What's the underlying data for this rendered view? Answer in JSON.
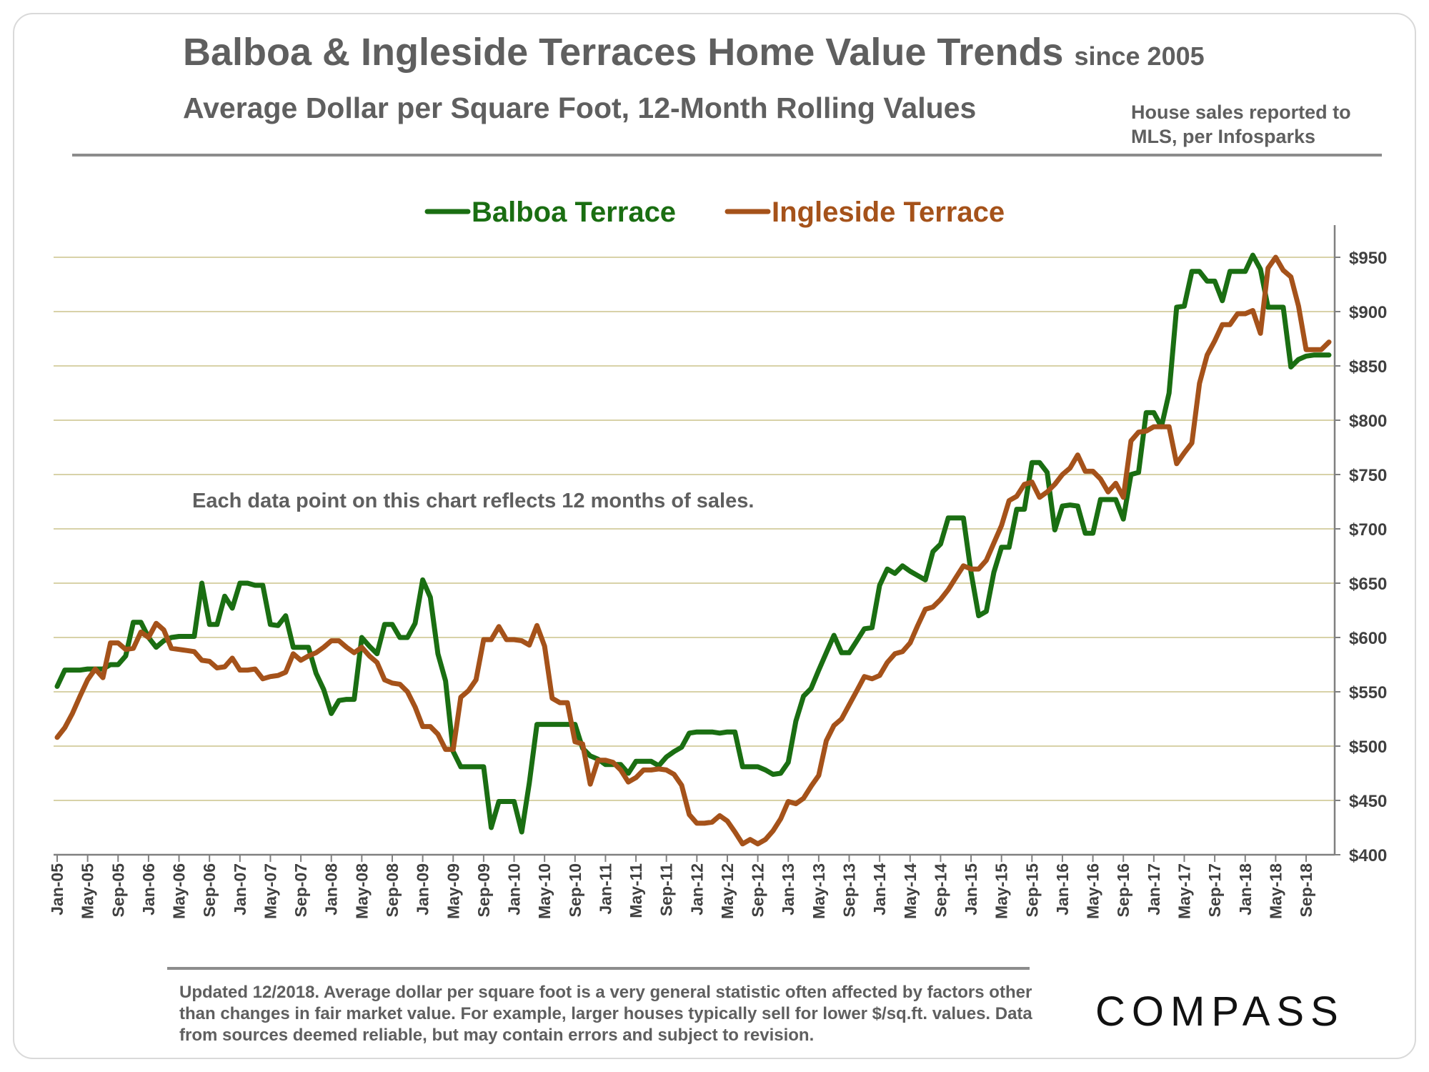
{
  "header": {
    "title": "Balboa & Ingleside Terraces Home Value Trends",
    "title_suffix": "since 2005",
    "subtitle": "Average Dollar per Square Foot, 12-Month Rolling Values",
    "source_note": "House sales reported to MLS, per Infosparks"
  },
  "footer": {
    "note": "Updated 12/2018. Average dollar per square foot is a very general statistic often affected by factors other than changes in fair market value. For example, larger houses typically sell for lower $/sq.ft. values. Data from sources deemed reliable, but may contain errors and subject to revision.",
    "logo": "COMPASS"
  },
  "colors": {
    "balboa": "#1a6e12",
    "ingleside": "#a5521a",
    "grid": "#d8d2a8",
    "axis": "#808080"
  },
  "chart_data": {
    "type": "line",
    "title": "Balboa & Ingleside Terraces Home Value Trends since 2005",
    "subtitle": "Average Dollar per Square Foot, 12-Month Rolling Values",
    "xlabel": "",
    "ylabel": "",
    "ylim": [
      400,
      950
    ],
    "yticks": [
      400,
      450,
      500,
      550,
      600,
      650,
      700,
      750,
      800,
      850,
      900,
      950
    ],
    "ytick_labels": [
      "$400",
      "$450",
      "$500",
      "$550",
      "$600",
      "$650",
      "$700",
      "$750",
      "$800",
      "$850",
      "$900",
      "$950"
    ],
    "grid": true,
    "legend_position": "top-center",
    "annotation": "Each data point on this chart reflects 12 months of sales.",
    "x_labels": [
      "Jan-05",
      "May-05",
      "Sep-05",
      "Jan-06",
      "May-06",
      "Sep-06",
      "Jan-07",
      "May-07",
      "Sep-07",
      "Jan-08",
      "May-08",
      "Sep-08",
      "Jan-09",
      "May-09",
      "Sep-09",
      "Jan-10",
      "May-10",
      "Sep-10",
      "Jan-11",
      "May-11",
      "Sep-11",
      "Jan-12",
      "May-12",
      "Sep-12",
      "Jan-13",
      "May-13",
      "Sep-13",
      "Jan-14",
      "May-14",
      "Sep-14",
      "Jan-15",
      "May-15",
      "Sep-15",
      "Jan-16",
      "May-16",
      "Sep-16",
      "Jan-17",
      "May-17",
      "Sep-17",
      "Jan-18",
      "May-18",
      "Sep-18"
    ],
    "months_start": "Jan-05",
    "months_count": 168,
    "series": [
      {
        "name": "Balboa Terrace",
        "values": [
          555,
          570,
          570,
          570,
          571,
          571,
          571,
          575,
          575,
          583,
          614,
          614,
          600,
          591,
          597,
          600,
          601,
          601,
          601,
          650,
          612,
          612,
          638,
          627,
          650,
          650,
          648,
          648,
          612,
          611,
          620,
          591,
          591,
          591,
          567,
          552,
          530,
          542,
          543,
          543,
          600,
          592,
          585,
          612,
          612,
          600,
          600,
          613,
          653,
          637,
          585,
          560,
          495,
          481,
          481,
          481,
          481,
          425,
          449,
          449,
          449,
          421,
          466,
          520,
          520,
          520,
          520,
          520,
          520,
          498,
          491,
          488,
          483,
          483,
          483,
          475,
          486,
          486,
          486,
          482,
          490,
          495,
          499,
          512,
          513,
          513,
          513,
          512,
          513,
          513,
          481,
          481,
          481,
          478,
          474,
          475,
          485,
          523,
          546,
          553,
          570,
          586,
          602,
          586,
          586,
          597,
          608,
          609,
          648,
          663,
          659,
          666,
          661,
          657,
          653,
          679,
          686,
          710,
          710,
          710,
          660,
          620,
          624,
          660,
          683,
          683,
          718,
          718,
          761,
          761,
          752,
          699,
          721,
          722,
          721,
          696,
          696,
          727,
          727,
          727,
          709,
          750,
          752,
          807,
          807,
          794,
          825,
          904,
          905,
          937,
          937,
          928,
          928,
          910,
          937,
          937,
          937,
          952,
          939,
          904,
          904,
          904,
          849,
          856,
          859,
          860,
          860,
          860
        ]
      },
      {
        "name": "Ingleside Terrace",
        "values": [
          508,
          517,
          530,
          546,
          561,
          571,
          563,
          595,
          595,
          589,
          590,
          605,
          600,
          613,
          607,
          590,
          589,
          588,
          587,
          579,
          578,
          572,
          573,
          581,
          570,
          570,
          571,
          562,
          564,
          565,
          568,
          585,
          579,
          583,
          586,
          591,
          597,
          597,
          591,
          586,
          591,
          583,
          577,
          561,
          558,
          557,
          550,
          536,
          518,
          518,
          511,
          497,
          497,
          545,
          551,
          561,
          598,
          598,
          610,
          598,
          598,
          597,
          593,
          611,
          592,
          544,
          540,
          540,
          504,
          502,
          465,
          487,
          487,
          485,
          478,
          467,
          471,
          478,
          478,
          479,
          478,
          474,
          464,
          437,
          429,
          429,
          430,
          436,
          431,
          421,
          410,
          414,
          410,
          414,
          422,
          433,
          449,
          447,
          452,
          463,
          473,
          505,
          519,
          525,
          538,
          551,
          564,
          562,
          565,
          577,
          585,
          587,
          595,
          611,
          626,
          628,
          635,
          644,
          655,
          666,
          663,
          663,
          671,
          687,
          703,
          726,
          730,
          741,
          743,
          729,
          734,
          741,
          750,
          756,
          768,
          753,
          753,
          746,
          734,
          742,
          729,
          781,
          789,
          790,
          794,
          794,
          794,
          760,
          770,
          779,
          834,
          860,
          873,
          888,
          888,
          898,
          898,
          901,
          880,
          940,
          950,
          938,
          932,
          905,
          865,
          865,
          865,
          872
        ]
      }
    ]
  }
}
